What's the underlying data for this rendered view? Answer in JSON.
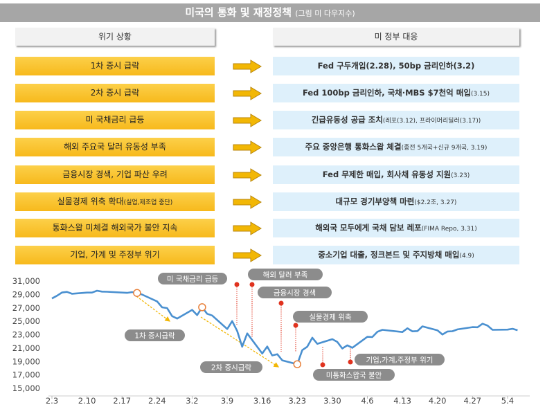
{
  "title": {
    "main": "미국의 통화 및 재정정책",
    "sub": "(그림 미 다우지수)"
  },
  "headers": {
    "left": "위기 상황",
    "right": "미 정부 대응"
  },
  "rows": [
    {
      "crisis": "1차 증시 급락",
      "crisis_note": "",
      "response": "Fed 구두개입(2.28), 50bp 금리인하(3.2)",
      "response_note": ""
    },
    {
      "crisis": "2차 증시 급락",
      "crisis_note": "",
      "response": "Fed 100bp 금리인하, 국채·MBS $7천억 매입",
      "response_note": "(3.15)"
    },
    {
      "crisis": "미 국채금리 급등",
      "crisis_note": "",
      "response": "긴급유동성 공급 조치",
      "response_note": "(레포(3.12), 프라이머리딜러(3.17))"
    },
    {
      "crisis": "해외 주요국 달러 유동성 부족",
      "crisis_note": "",
      "response": "주요 중앙은행 통화스왑 체결",
      "response_note": "(종전 5개국+신규 9개국, 3.19)"
    },
    {
      "crisis": "금융시장 경색, 기업 파산 우려",
      "crisis_note": "",
      "response": "Fed 무제한 매입, 회사채 유동성 지원",
      "response_note": "(3.23)"
    },
    {
      "crisis": "실물경제 위축 확대",
      "crisis_note": "(실업,제조업 중단)",
      "response": "대규모 경기부양책 마련",
      "response_note": "($2.2조, 3.27)"
    },
    {
      "crisis": "통화스왑 미체결 해외국가 불안 지속",
      "crisis_note": "",
      "response": "해외국 모두에게 국채 담보 레포",
      "response_note": "(FIMA Repo, 3.31)"
    },
    {
      "crisis": "기업, 가계 및 주정부 위기",
      "crisis_note": "",
      "response": "중소기업 대출, 정크본드 및 주지방채 매입",
      "response_note": "(4.9)"
    }
  ],
  "colors": {
    "crisis_box": "#f9c22e",
    "response_box": "#def0fb",
    "arrow": "#f2b705",
    "line": "#4a90d0",
    "event_dot": "#e0321e",
    "label_pill": "#8c8c8c"
  },
  "chart_data": {
    "type": "line",
    "title": "",
    "xlabel": "",
    "ylabel": "",
    "ylim": [
      15000,
      31000
    ],
    "yticks": [
      "31,000",
      "29,000",
      "27,000",
      "25,000",
      "23,000",
      "21,000",
      "19,000",
      "17,000",
      "15,000"
    ],
    "xticks": [
      "2.3",
      "2.10",
      "2.17",
      "2.24",
      "3.2",
      "3.9",
      "3.16",
      "3.23",
      "3.30",
      "4.6",
      "4.13",
      "4.20",
      "4.27",
      "5.4"
    ],
    "grid": false,
    "series": [
      {
        "x": [
          "2.3",
          "2.4",
          "2.5",
          "2.6",
          "2.7",
          "2.10",
          "2.11",
          "2.12",
          "2.13",
          "2.14",
          "2.18",
          "2.19",
          "2.20",
          "2.21",
          "2.24",
          "2.25",
          "2.26",
          "2.27",
          "2.28",
          "3.2",
          "3.3",
          "3.4",
          "3.5",
          "3.6",
          "3.9",
          "3.10",
          "3.11",
          "3.12",
          "3.13",
          "3.16",
          "3.17",
          "3.18",
          "3.19",
          "3.20",
          "3.23",
          "3.24",
          "3.25",
          "3.26",
          "3.27",
          "3.30",
          "3.31",
          "4.1",
          "4.2",
          "4.3",
          "4.6",
          "4.7",
          "4.8",
          "4.9",
          "4.13",
          "4.14",
          "4.15",
          "4.16",
          "4.17",
          "4.20",
          "4.21",
          "4.22",
          "4.23",
          "4.24",
          "4.27",
          "4.28",
          "4.29",
          "4.30",
          "5.1",
          "5.4",
          "5.5",
          "5.6"
        ],
        "values": [
          28400,
          28800,
          29290,
          29380,
          29100,
          29280,
          29280,
          29550,
          29420,
          29400,
          29230,
          29350,
          29220,
          28990,
          27960,
          27080,
          26960,
          25770,
          25410,
          26700,
          25920,
          27090,
          26120,
          25860,
          23850,
          25020,
          23550,
          21200,
          23190,
          20190,
          21240,
          19900,
          20090,
          19170,
          18590,
          20700,
          21200,
          22550,
          21640,
          22330,
          21920,
          20940,
          21410,
          21050,
          22680,
          22650,
          23430,
          23720,
          23390,
          23950,
          23500,
          23540,
          24240,
          23650,
          23020,
          23480,
          23520,
          23780,
          24130,
          24100,
          24630,
          24350,
          23720,
          23750,
          23880,
          23660
        ]
      }
    ],
    "annotations": [
      {
        "label": "1차 증시급락",
        "type": "period"
      },
      {
        "label": "2차 증시급락",
        "type": "period"
      },
      {
        "label": "미 국채금리 급등",
        "type": "event"
      },
      {
        "label": "해외 달러 부족",
        "type": "event"
      },
      {
        "label": "금융시장 경색",
        "type": "event"
      },
      {
        "label": "실물경제 위축",
        "type": "event"
      },
      {
        "label": "미통화스왑국 불안",
        "type": "event"
      },
      {
        "label": "기업,가계,주정부 위기",
        "type": "event"
      }
    ]
  }
}
